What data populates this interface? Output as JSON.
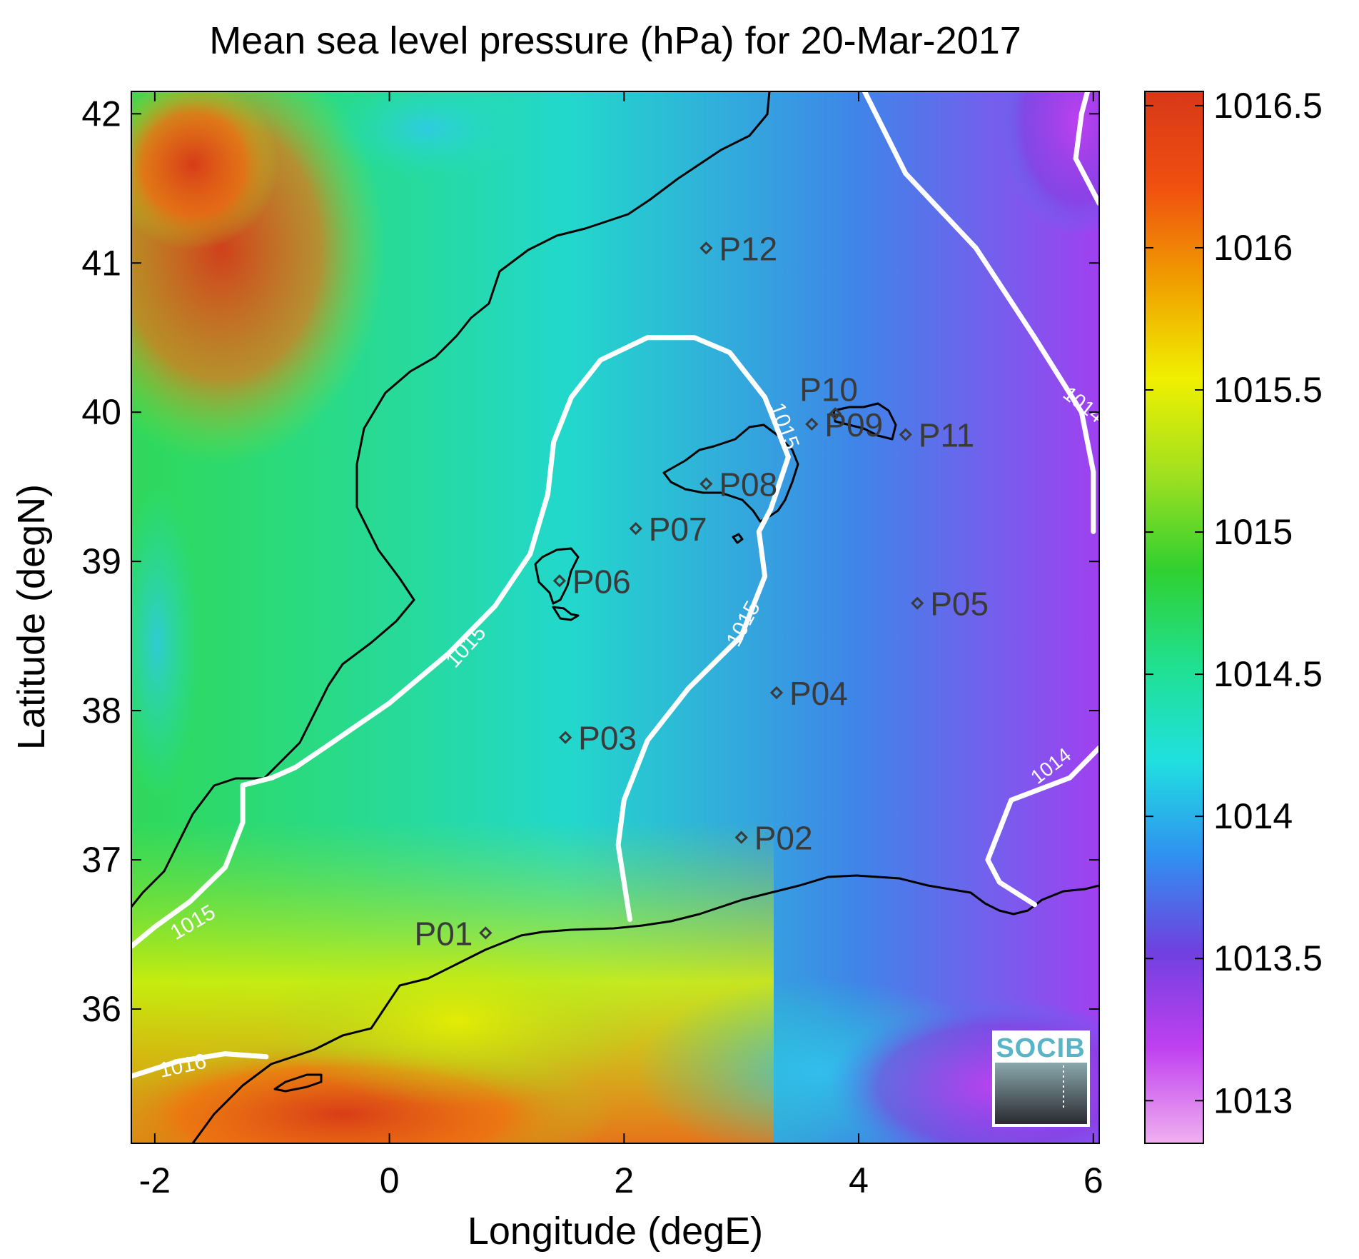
{
  "title": "Mean sea level pressure (hPa) for 20-Mar-2017",
  "axes": {
    "xlabel": "Longitude (degE)",
    "ylabel": "Latitude (degN)",
    "xlim": [
      -2.2,
      6.05
    ],
    "ylim": [
      35.1,
      42.15
    ],
    "xticks": [
      -2,
      0,
      2,
      4,
      6
    ],
    "yticks": [
      36,
      37,
      38,
      39,
      40,
      41,
      42
    ]
  },
  "colorbar": {
    "range": [
      1012.85,
      1016.55
    ],
    "ticks": [
      "1013",
      "1013.5",
      "1014",
      "1014.5",
      "1015",
      "1015.5",
      "1016",
      "1016.5"
    ],
    "tick_values": [
      1013,
      1013.5,
      1014,
      1014.5,
      1015,
      1015.5,
      1016,
      1016.5
    ],
    "colors": [
      "#f0b0f0",
      "#c040f0",
      "#7040e0",
      "#3090f0",
      "#20e0e0",
      "#20e090",
      "#30d030",
      "#a0e020",
      "#f0f000",
      "#f0a000",
      "#f05010",
      "#d83818"
    ]
  },
  "logo": "SOCIB",
  "contour_labels": [
    "1015",
    "1015",
    "1015",
    "1015",
    "1016",
    "1014",
    "1014"
  ],
  "chart_data": {
    "type": "scatter",
    "title": "Mean sea level pressure (hPa) for 20-Mar-2017",
    "xlabel": "Longitude (degE)",
    "ylabel": "Latitude (degN)",
    "points": [
      {
        "label": "P01",
        "x": 0.82,
        "y": 36.51
      },
      {
        "label": "P02",
        "x": 3.0,
        "y": 37.15
      },
      {
        "label": "P03",
        "x": 1.5,
        "y": 37.82
      },
      {
        "label": "P04",
        "x": 3.3,
        "y": 38.12
      },
      {
        "label": "P05",
        "x": 4.5,
        "y": 38.72
      },
      {
        "label": "P06",
        "x": 1.45,
        "y": 38.87
      },
      {
        "label": "P07",
        "x": 2.1,
        "y": 39.22
      },
      {
        "label": "P08",
        "x": 2.7,
        "y": 39.52
      },
      {
        "label": "P09",
        "x": 3.6,
        "y": 39.92
      },
      {
        "label": "P10",
        "x": 3.8,
        "y": 39.99
      },
      {
        "label": "P11",
        "x": 4.4,
        "y": 39.85
      },
      {
        "label": "P12",
        "x": 2.7,
        "y": 41.1
      }
    ],
    "contours": [
      {
        "level": "1015",
        "line": [
          [
            -2.2,
            36.42
          ],
          [
            -2.0,
            36.55
          ],
          [
            -1.7,
            36.72
          ],
          [
            -1.4,
            36.95
          ],
          [
            -1.25,
            37.25
          ],
          [
            -1.25,
            37.5
          ],
          [
            -1.0,
            37.55
          ],
          [
            -0.8,
            37.62
          ],
          [
            -0.5,
            37.78
          ],
          [
            0.0,
            38.05
          ],
          [
            0.5,
            38.38
          ],
          [
            0.9,
            38.7
          ],
          [
            1.2,
            39.05
          ],
          [
            1.35,
            39.45
          ],
          [
            1.4,
            39.8
          ],
          [
            1.55,
            40.1
          ],
          [
            1.8,
            40.35
          ],
          [
            2.2,
            40.5
          ],
          [
            2.6,
            40.5
          ],
          [
            2.9,
            40.4
          ],
          [
            3.2,
            40.1
          ],
          [
            3.4,
            39.7
          ],
          [
            3.25,
            39.35
          ],
          [
            3.15,
            39.2
          ],
          [
            3.2,
            38.9
          ],
          [
            3.0,
            38.5
          ],
          [
            2.55,
            38.15
          ],
          [
            2.2,
            37.8
          ],
          [
            2.0,
            37.4
          ],
          [
            1.95,
            37.1
          ],
          [
            2.05,
            36.6
          ]
        ]
      },
      {
        "level": "1016",
        "line": [
          [
            -2.2,
            35.55
          ],
          [
            -1.8,
            35.65
          ],
          [
            -1.4,
            35.7
          ],
          [
            -1.05,
            35.68
          ]
        ]
      },
      {
        "level": "1014",
        "line": [
          [
            4.05,
            42.15
          ],
          [
            4.4,
            41.6
          ],
          [
            5.0,
            41.1
          ],
          [
            5.5,
            40.5
          ],
          [
            5.9,
            40.0
          ],
          [
            6.0,
            39.6
          ],
          [
            6.0,
            39.2
          ]
        ]
      },
      {
        "level": "1014",
        "line": [
          [
            6.05,
            37.75
          ],
          [
            5.8,
            37.55
          ],
          [
            5.3,
            37.4
          ],
          [
            5.1,
            37.0
          ],
          [
            5.2,
            36.85
          ],
          [
            5.5,
            36.7
          ]
        ]
      },
      {
        "level": "1013",
        "line": [
          [
            6.05,
            41.4
          ],
          [
            5.85,
            41.7
          ],
          [
            5.9,
            42.0
          ],
          [
            5.95,
            42.15
          ]
        ]
      }
    ]
  }
}
